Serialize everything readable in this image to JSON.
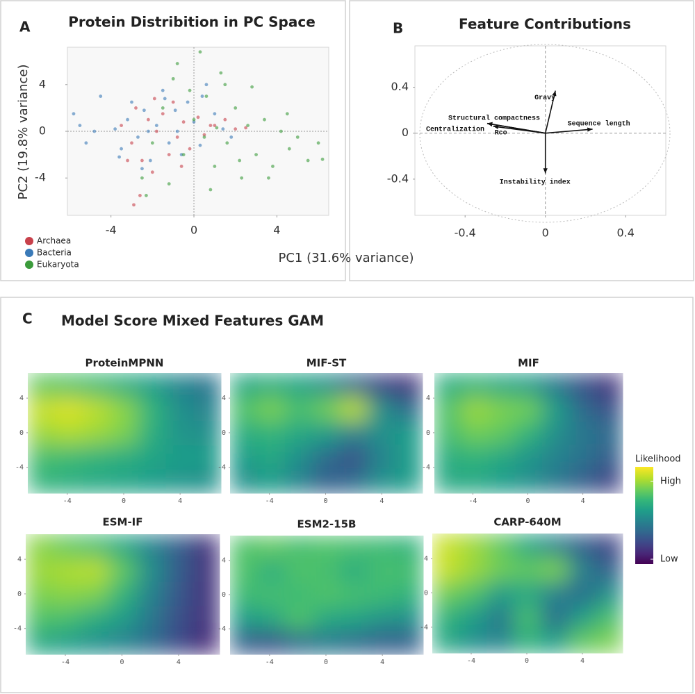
{
  "chart_data": [
    {
      "type": "scatter",
      "panel_label": "A",
      "title": "Protein Distribition in PC Space",
      "xlabel": "PC1 (31.6% variance)",
      "ylabel": "PC2 (19.8% variance)",
      "xlim": [
        -6.1,
        6.5
      ],
      "ylim": [
        -7.2,
        7.2
      ],
      "xticks": [
        -4,
        0,
        4
      ],
      "yticks": [
        4,
        0,
        -4
      ],
      "series": [
        {
          "name": "Archaea",
          "color": "#c8414b",
          "x": [
            -3.5,
            -3,
            -2.8,
            -2.5,
            -2.2,
            -2,
            -1.8,
            -1.5,
            -1.2,
            -1,
            -0.8,
            -0.5,
            -0.2,
            0.2,
            0.5,
            1,
            1.5,
            2,
            -2.6,
            -3.2,
            -1.9,
            -0.6,
            0.8,
            2.5,
            -2.9
          ],
          "y": [
            0.5,
            -1,
            2,
            -2.5,
            1,
            -3.5,
            0,
            1.5,
            -2,
            2.5,
            -0.5,
            0.8,
            -1.5,
            1.2,
            -0.3,
            0.5,
            1,
            0.2,
            -5.5,
            -2.5,
            2.8,
            -3,
            0.5,
            0.3,
            -6.3
          ]
        },
        {
          "name": "Bacteria",
          "color": "#3a7ab8",
          "x": [
            -5.8,
            -5.5,
            -5.2,
            -4.8,
            -4.5,
            -3.8,
            -3.5,
            -3.2,
            -3,
            -2.7,
            -2.4,
            -2.1,
            -1.8,
            -1.5,
            -1.2,
            -0.9,
            -0.6,
            -0.3,
            0,
            0.3,
            0.6,
            1,
            1.4,
            -2.5,
            -1.4,
            -0.8,
            0.4,
            -3.6,
            -2.2,
            1.8
          ],
          "y": [
            1.5,
            0.5,
            -1,
            0,
            3,
            0.2,
            -1.5,
            1,
            2.5,
            -0.5,
            1.8,
            -2.5,
            0.5,
            3.5,
            -1,
            1.8,
            -2,
            2.5,
            0.8,
            -1.2,
            4,
            1.5,
            0.2,
            -3.2,
            2.8,
            0,
            3,
            -2.2,
            0,
            -0.5
          ]
        },
        {
          "name": "Eukaryota",
          "color": "#3b9b3b",
          "x": [
            -2.5,
            -2,
            -1.5,
            -1,
            -0.5,
            0,
            0.3,
            0.6,
            1,
            1.3,
            1.6,
            2,
            2.3,
            2.6,
            3,
            3.4,
            3.8,
            4.2,
            4.6,
            5,
            5.5,
            6,
            6.2,
            0.8,
            1.5,
            2.2,
            -0.2,
            0.5,
            2.8,
            3.6,
            -0.8,
            1.1,
            4.5,
            -1.2,
            -2.3
          ],
          "y": [
            -4,
            -1,
            2,
            4.5,
            -2,
            1,
            6.8,
            3,
            -3,
            5,
            -1,
            2,
            -4,
            0.5,
            -2,
            1,
            -3,
            0,
            -1.5,
            -0.5,
            -2.5,
            -1,
            -2.4,
            -5,
            4,
            -2.5,
            3.5,
            -0.5,
            3.8,
            -4,
            5.8,
            0.3,
            1.5,
            -4.5,
            -5.5
          ]
        }
      ]
    },
    {
      "type": "biplot",
      "panel_label": "B",
      "title": "Feature Contributions",
      "xlim": [
        -0.65,
        0.6
      ],
      "ylim": [
        -0.715,
        0.76
      ],
      "xticks": [
        -0.4,
        0,
        0.4
      ],
      "yticks": [
        0.4,
        0,
        -0.4
      ],
      "vectors": {
        "names": [
          "Gravy",
          "Structural compactness",
          "Centralization",
          "Rco",
          "Sequence length",
          "Instability index"
        ],
        "x": [
          0.05,
          -0.29,
          -0.29,
          -0.26,
          0.235,
          0
        ],
        "y": [
          0.37,
          0.085,
          0.085,
          0.06,
          0.035,
          -0.35
        ]
      }
    },
    {
      "type": "heatmap",
      "panel_label": "C",
      "title": "Model Score Mixed Features GAM",
      "xlim": [
        -6.8,
        6.9
      ],
      "ylim": [
        -7,
        6.9
      ],
      "xticks": [
        -4,
        0,
        4
      ],
      "yticks": [
        4,
        0,
        -4
      ],
      "zlim": [
        0,
        1
      ],
      "colorbar_title": "Likelihood",
      "colorbar_ticks": [
        {
          "value": 0.85,
          "label": "High"
        },
        {
          "value": 0.05,
          "label": "Low"
        }
      ],
      "panels": [
        {
          "title": "ProteinMPNN",
          "values": [
            [
              0.75,
              0.72,
              0.68,
              0.62,
              0.55,
              0.45,
              0.38
            ],
            [
              0.92,
              0.95,
              0.9,
              0.82,
              0.65,
              0.5,
              0.45
            ],
            [
              0.85,
              0.88,
              0.85,
              0.8,
              0.62,
              0.52,
              0.5
            ],
            [
              0.7,
              0.68,
              0.65,
              0.62,
              0.58,
              0.55,
              0.55
            ],
            [
              0.65,
              0.62,
              0.6,
              0.58,
              0.55,
              0.52,
              0.5
            ]
          ]
        },
        {
          "title": "MIF-ST",
          "values": [
            [
              0.6,
              0.62,
              0.58,
              0.5,
              0.35,
              0.2,
              0.15
            ],
            [
              0.72,
              0.8,
              0.7,
              0.78,
              0.9,
              0.5,
              0.35
            ],
            [
              0.62,
              0.65,
              0.6,
              0.55,
              0.45,
              0.5,
              0.55
            ],
            [
              0.55,
              0.6,
              0.5,
              0.35,
              0.25,
              0.45,
              0.55
            ],
            [
              0.5,
              0.55,
              0.45,
              0.3,
              0.35,
              0.5,
              0.55
            ]
          ]
        },
        {
          "title": "MIF",
          "values": [
            [
              0.62,
              0.65,
              0.6,
              0.55,
              0.4,
              0.25,
              0.15
            ],
            [
              0.72,
              0.85,
              0.8,
              0.78,
              0.55,
              0.35,
              0.25
            ],
            [
              0.7,
              0.78,
              0.75,
              0.65,
              0.5,
              0.4,
              0.35
            ],
            [
              0.62,
              0.65,
              0.6,
              0.52,
              0.45,
              0.38,
              0.3
            ],
            [
              0.6,
              0.6,
              0.55,
              0.5,
              0.4,
              0.3,
              0.2
            ]
          ]
        },
        {
          "title": "ESM-IF",
          "values": [
            [
              0.82,
              0.75,
              0.7,
              0.6,
              0.45,
              0.3,
              0.15
            ],
            [
              0.85,
              0.88,
              0.9,
              0.75,
              0.5,
              0.3,
              0.15
            ],
            [
              0.8,
              0.82,
              0.8,
              0.65,
              0.45,
              0.28,
              0.15
            ],
            [
              0.72,
              0.7,
              0.62,
              0.55,
              0.4,
              0.25,
              0.15
            ],
            [
              0.6,
              0.55,
              0.5,
              0.45,
              0.35,
              0.22,
              0.12
            ]
          ]
        },
        {
          "title": "ESM2-15B",
          "values": [
            [
              0.72,
              0.75,
              0.7,
              0.72,
              0.7,
              0.68,
              0.65
            ],
            [
              0.72,
              0.62,
              0.72,
              0.7,
              0.62,
              0.7,
              0.7
            ],
            [
              0.68,
              0.7,
              0.68,
              0.72,
              0.7,
              0.68,
              0.65
            ],
            [
              0.55,
              0.6,
              0.72,
              0.6,
              0.58,
              0.52,
              0.5
            ],
            [
              0.3,
              0.25,
              0.35,
              0.4,
              0.35,
              0.3,
              0.3
            ]
          ]
        },
        {
          "title": "CARP-640M",
          "values": [
            [
              0.92,
              0.85,
              0.75,
              0.6,
              0.45,
              0.3,
              0.2
            ],
            [
              0.92,
              0.85,
              0.78,
              0.75,
              0.8,
              0.45,
              0.3
            ],
            [
              0.78,
              0.72,
              0.55,
              0.6,
              0.45,
              0.35,
              0.5
            ],
            [
              0.65,
              0.55,
              0.4,
              0.7,
              0.35,
              0.55,
              0.7
            ],
            [
              0.6,
              0.5,
              0.45,
              0.65,
              0.55,
              0.75,
              0.8
            ]
          ]
        }
      ]
    }
  ]
}
